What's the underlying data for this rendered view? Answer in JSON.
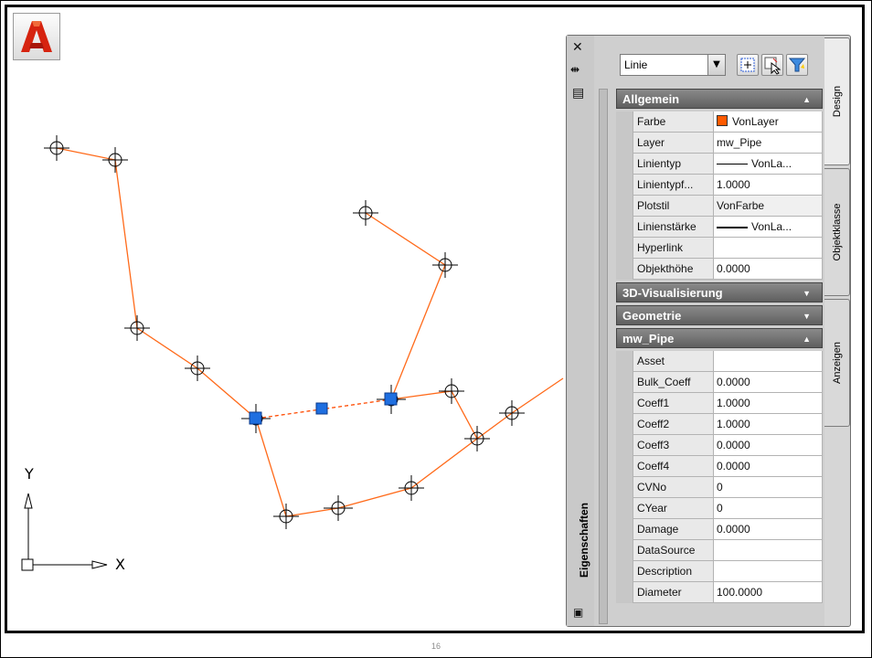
{
  "page_number": "16",
  "ucs": {
    "y_label": "Y",
    "x_label": "X"
  },
  "palette": {
    "title": "Eigenschaften",
    "object_type": "Linie",
    "strip_icons": {
      "close": "close-icon",
      "autohide": "autohide-icon",
      "menu": "properties-menu-icon"
    },
    "toolbar_icons": [
      "toggle-pickadd-icon",
      "select-objects-icon",
      "quick-select-icon"
    ],
    "tabs": [
      "Design",
      "Objektklasse",
      "Anzeigen"
    ],
    "sections": {
      "allgemein": {
        "title": "Allgemein",
        "rows": [
          {
            "name": "Farbe",
            "value": "VonLayer"
          },
          {
            "name": "Layer",
            "value": "mw_Pipe"
          },
          {
            "name": "Linientyp",
            "value": "VonLa..."
          },
          {
            "name": "Linientypf...",
            "value": "1.0000"
          },
          {
            "name": "Plotstil",
            "value": "VonFarbe"
          },
          {
            "name": "Linienstärke",
            "value": "VonLa..."
          },
          {
            "name": "Hyperlink",
            "value": ""
          },
          {
            "name": "Objekthöhe",
            "value": "0.0000"
          }
        ]
      },
      "vis3d": {
        "title": "3D-Visualisierung"
      },
      "geometrie": {
        "title": "Geometrie"
      },
      "mwpipe": {
        "title": "mw_Pipe",
        "rows": [
          {
            "name": "Asset",
            "value": ""
          },
          {
            "name": "Bulk_Coeff",
            "value": "0.0000"
          },
          {
            "name": "Coeff1",
            "value": "1.0000"
          },
          {
            "name": "Coeff2",
            "value": "1.0000"
          },
          {
            "name": "Coeff3",
            "value": "0.0000"
          },
          {
            "name": "Coeff4",
            "value": "0.0000"
          },
          {
            "name": "CVNo",
            "value": "0"
          },
          {
            "name": "CYear",
            "value": "0"
          },
          {
            "name": "Damage",
            "value": "0.0000"
          },
          {
            "name": "DataSource",
            "value": ""
          },
          {
            "name": "Description",
            "value": ""
          },
          {
            "name": "Diameter",
            "value": "100.0000"
          }
        ]
      }
    }
  },
  "colors": {
    "pipe_line": "#ff6a1a",
    "grip": "#1f6fe0",
    "header": "#6f6f6f"
  }
}
